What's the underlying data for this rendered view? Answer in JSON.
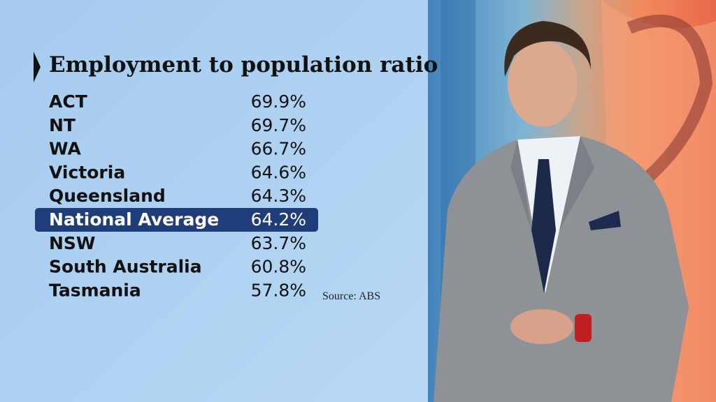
{
  "title": "Employment to population ratio",
  "table": {
    "rows": [
      [
        "ACT",
        "69.9%"
      ],
      [
        "NT",
        "69.7%"
      ],
      [
        "WA",
        "66.7%"
      ],
      [
        "Victoria",
        "64.6%"
      ],
      [
        "Queensland",
        "64.3%"
      ],
      [
        "National Average",
        "64.2%"
      ],
      [
        "NSW",
        "63.7%"
      ],
      [
        "South Australia",
        "60.8%"
      ],
      [
        "Tasmania",
        "57.8%"
      ]
    ],
    "highlight_row": 5
  },
  "source": "Source: ABS"
}
